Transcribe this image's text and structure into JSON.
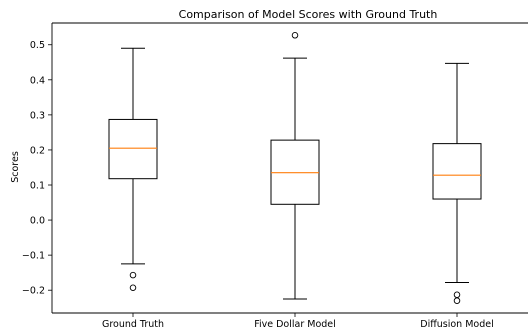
{
  "chart_data": {
    "type": "box",
    "title": "Comparison of Model Scores with Ground Truth",
    "xlabel": "",
    "ylabel": "Scores",
    "ylim": [
      -0.265,
      0.562
    ],
    "yticks": [
      -0.2,
      -0.1,
      0.0,
      0.1,
      0.2,
      0.3,
      0.4,
      0.5
    ],
    "ytick_labels": [
      "−0.2",
      "−0.1",
      "0.0",
      "0.1",
      "0.2",
      "0.3",
      "0.4",
      "0.5"
    ],
    "grid": false,
    "categories": [
      "Ground Truth",
      "Five Dollar Model",
      "Diffusion Model"
    ],
    "boxes": [
      {
        "category": "Ground Truth",
        "whisker_low": -0.125,
        "q1": 0.118,
        "median": 0.205,
        "q3": 0.287,
        "whisker_high": 0.49,
        "outliers": [
          -0.157,
          -0.193
        ]
      },
      {
        "category": "Five Dollar Model",
        "whisker_low": -0.225,
        "q1": 0.045,
        "median": 0.135,
        "q3": 0.228,
        "whisker_high": 0.462,
        "outliers": [
          0.527
        ]
      },
      {
        "category": "Diffusion Model",
        "whisker_low": -0.178,
        "q1": 0.06,
        "median": 0.128,
        "q3": 0.218,
        "whisker_high": 0.447,
        "outliers": [
          -0.213,
          -0.23
        ]
      }
    ],
    "colors": {
      "box": "#000000",
      "median": "#ff7f0e",
      "whisker": "#000000",
      "outlier": "#000000"
    }
  }
}
